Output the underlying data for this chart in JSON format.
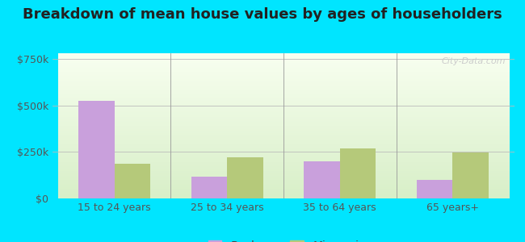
{
  "title": "Breakdown of mean house values by ages of householders",
  "categories": [
    "15 to 24 years",
    "25 to 34 years",
    "35 to 64 years",
    "65 years+"
  ],
  "buckner_values": [
    525000,
    115000,
    200000,
    100000
  ],
  "missouri_values": [
    185000,
    220000,
    270000,
    245000
  ],
  "buckner_color": "#c9a0dc",
  "missouri_color": "#b5c97a",
  "yticks": [
    0,
    250000,
    500000,
    750000
  ],
  "ytick_labels": [
    "$0",
    "$250k",
    "$500k",
    "$750k"
  ],
  "ylim": [
    0,
    780000
  ],
  "bg_top": "#f8fff0",
  "bg_bottom": "#d8efc8",
  "outer_bg": "#00e5ff",
  "bar_width": 0.32,
  "title_fontsize": 13,
  "legend_fontsize": 10,
  "axis_fontsize": 9,
  "watermark": "City-Data.com"
}
